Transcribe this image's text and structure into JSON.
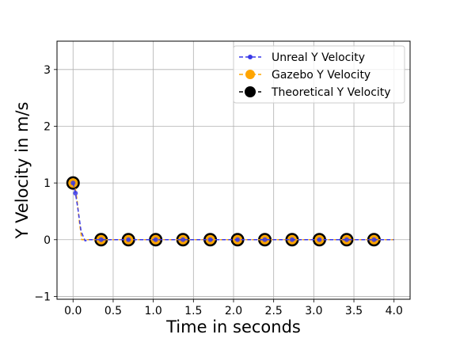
{
  "chart_data": {
    "type": "line",
    "title": "",
    "xlabel": "Time in seconds",
    "ylabel": "Y Velocity in m/s",
    "xlim": [
      -0.2,
      4.2
    ],
    "ylim": [
      -1.05,
      3.5
    ],
    "xticks": [
      0.0,
      0.5,
      1.0,
      1.5,
      2.0,
      2.5,
      3.0,
      3.5,
      4.0
    ],
    "xtick_labels": [
      "0.0",
      "0.5",
      "1.0",
      "1.5",
      "2.0",
      "2.5",
      "3.0",
      "3.5",
      "4.0"
    ],
    "yticks": [
      -1,
      0,
      1,
      2,
      3
    ],
    "ytick_labels": [
      "−1",
      "0",
      "1",
      "2",
      "3"
    ],
    "grid": true,
    "legend_position": "top-right",
    "series": [
      {
        "name": "Unreal Y Velocity",
        "color": "#3a3ae8",
        "linestyle": "dashed",
        "marker": "circle-small",
        "line": {
          "x": [
            0.0,
            0.03,
            0.06,
            0.1,
            0.15,
            0.2,
            0.3,
            0.5,
            1.0,
            1.5,
            2.0,
            2.5,
            3.0,
            3.5,
            4.0
          ],
          "y": [
            1.0,
            0.82,
            0.55,
            0.15,
            -0.02,
            0.0,
            0.0,
            0.0,
            0.0,
            0.0,
            0.0,
            0.0,
            0.0,
            0.0,
            0.0
          ]
        },
        "markers": {
          "x": [
            0.0,
            0.03,
            0.35,
            0.69,
            1.03,
            1.37,
            1.71,
            2.05,
            2.39,
            2.73,
            3.07,
            3.41,
            3.75
          ],
          "y": [
            1.0,
            0.82,
            0.0,
            0.0,
            0.0,
            0.0,
            0.0,
            0.0,
            0.0,
            0.0,
            0.0,
            0.0,
            0.0
          ]
        }
      },
      {
        "name": "Gazebo Y Velocity",
        "color": "#ffa500",
        "linestyle": "dashed",
        "marker": "circle-medium",
        "line": {
          "x": [
            0.0,
            0.02,
            0.05,
            0.08,
            0.11,
            0.15,
            0.3,
            0.5,
            1.0,
            1.5,
            2.0,
            2.5,
            3.0,
            3.5,
            4.0
          ],
          "y": [
            1.0,
            0.98,
            0.7,
            0.3,
            0.0,
            0.0,
            0.0,
            0.0,
            0.0,
            0.0,
            0.0,
            0.0,
            0.0,
            0.0,
            0.0
          ]
        },
        "markers": {
          "x": [
            0.0,
            0.35,
            0.69,
            1.03,
            1.37,
            1.71,
            2.05,
            2.39,
            2.73,
            3.07,
            3.41,
            3.75
          ],
          "y": [
            1.0,
            0.0,
            0.0,
            0.0,
            0.0,
            0.0,
            0.0,
            0.0,
            0.0,
            0.0,
            0.0,
            0.0
          ]
        }
      },
      {
        "name": "Theoretical Y Velocity",
        "color": "#000000",
        "linestyle": "dashed",
        "marker": "circle-large",
        "line": {
          "x": [],
          "y": []
        },
        "markers": {
          "x": [
            0.0,
            0.35,
            0.69,
            1.03,
            1.37,
            1.71,
            2.05,
            2.39,
            2.73,
            3.07,
            3.41,
            3.75
          ],
          "y": [
            1.0,
            0.0,
            0.0,
            0.0,
            0.0,
            0.0,
            0.0,
            0.0,
            0.0,
            0.0,
            0.0,
            0.0
          ]
        }
      }
    ]
  }
}
